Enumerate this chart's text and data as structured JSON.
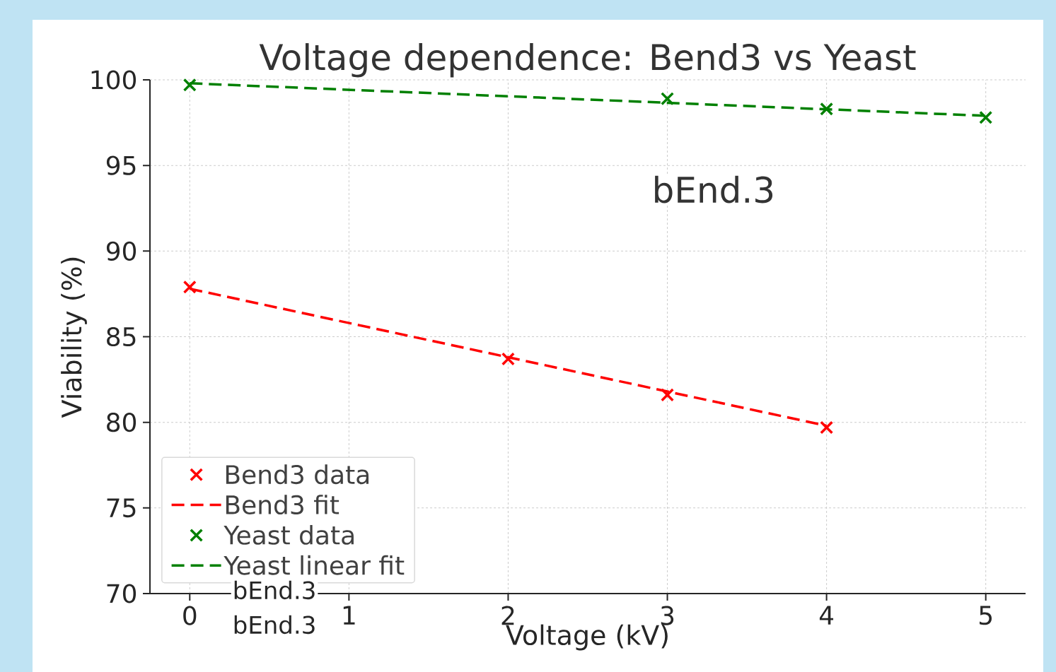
{
  "chart_data": {
    "type": "line",
    "title": "Voltage dependence: Bend3 vs Yeast",
    "xlabel": "Voltage (kV)",
    "ylabel": "Viability (%)",
    "xlim": [
      -0.25,
      5.25
    ],
    "ylim": [
      70,
      100
    ],
    "xticks": [
      0,
      1,
      2,
      3,
      4,
      5
    ],
    "yticks": [
      70,
      75,
      80,
      85,
      90,
      95,
      100
    ],
    "grid": true,
    "legend": "bottom left",
    "annotations": [
      "bEnd.3",
      "bEnd.3",
      "bEnd.3"
    ],
    "series": [
      {
        "name": "Bend3 data",
        "type": "scatter",
        "color": "#ff0000",
        "marker": "cross",
        "x": [
          0,
          2,
          3,
          4
        ],
        "values": [
          87.9,
          83.7,
          81.6,
          79.7
        ]
      },
      {
        "name": "Bend3 fit",
        "type": "line",
        "color": "#ff0000",
        "line_style": "dashed",
        "marker": "none",
        "x": [
          0,
          4
        ],
        "values": [
          87.8,
          79.8
        ]
      },
      {
        "name": "Yeast data",
        "type": "scatter",
        "color": "#008000",
        "marker": "cross",
        "x": [
          0,
          3,
          4,
          5
        ],
        "values": [
          99.7,
          98.9,
          98.3,
          97.8
        ]
      },
      {
        "name": "Yeast linear fit",
        "type": "line",
        "color": "#008000",
        "line_style": "dashed",
        "marker": "none",
        "x": [
          0,
          5
        ],
        "values": [
          99.8,
          97.9
        ]
      }
    ]
  }
}
